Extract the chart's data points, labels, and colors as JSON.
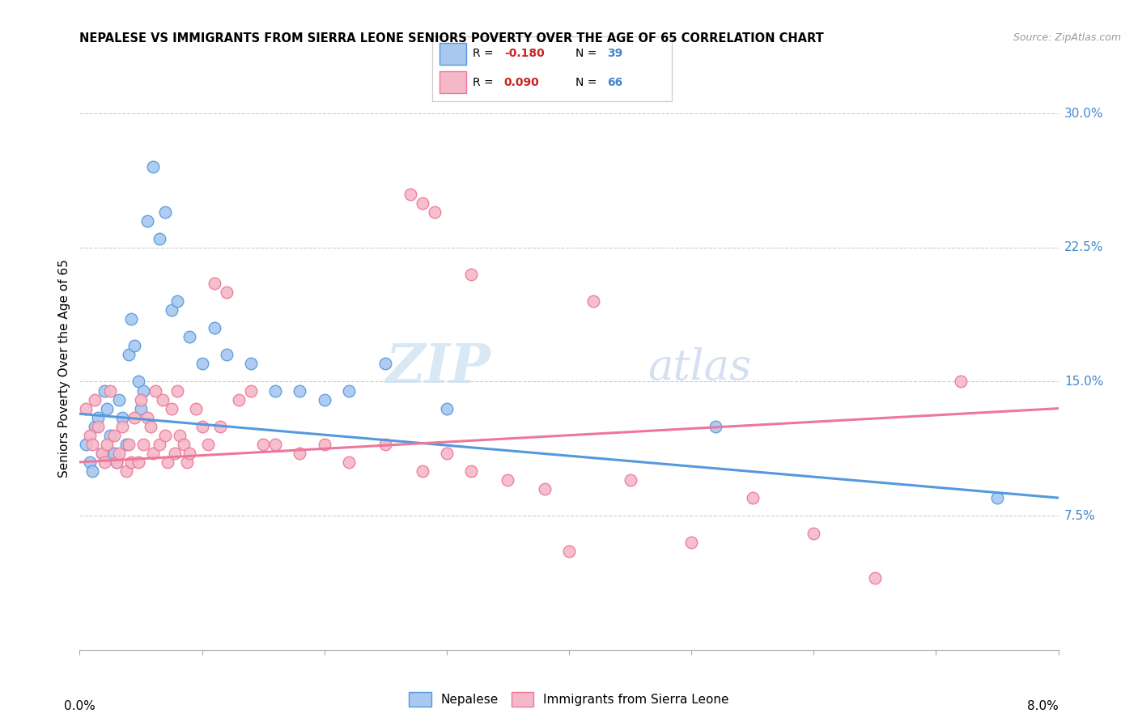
{
  "title": "NEPALESE VS IMMIGRANTS FROM SIERRA LEONE SENIORS POVERTY OVER THE AGE OF 65 CORRELATION CHART",
  "source": "Source: ZipAtlas.com",
  "ylabel": "Seniors Poverty Over the Age of 65",
  "y_ticks_right": [
    7.5,
    15.0,
    22.5,
    30.0
  ],
  "y_ticks_right_labels": [
    "7.5%",
    "15.0%",
    "22.5%",
    "30.0%"
  ],
  "x_range": [
    0.0,
    8.0
  ],
  "y_range": [
    0.0,
    31.5
  ],
  "blue_color": "#a8c8f0",
  "pink_color": "#f5b8c8",
  "blue_line_color": "#5599dd",
  "pink_line_color": "#ee7799",
  "r_color": "#cc2222",
  "n_color": "#4488cc",
  "watermark_zip": "ZIP",
  "watermark_atlas": "atlas",
  "blue_scatter_x": [
    0.05,
    0.08,
    0.1,
    0.12,
    0.15,
    0.18,
    0.2,
    0.22,
    0.25,
    0.28,
    0.3,
    0.32,
    0.35,
    0.38,
    0.4,
    0.42,
    0.45,
    0.48,
    0.5,
    0.52,
    0.55,
    0.6,
    0.65,
    0.7,
    0.75,
    0.8,
    0.9,
    1.0,
    1.1,
    1.2,
    1.4,
    1.6,
    1.8,
    2.0,
    2.2,
    2.5,
    3.0,
    5.2,
    7.5
  ],
  "blue_scatter_y": [
    11.5,
    10.5,
    10.0,
    12.5,
    13.0,
    11.0,
    14.5,
    13.5,
    12.0,
    11.0,
    10.5,
    14.0,
    13.0,
    11.5,
    16.5,
    18.5,
    17.0,
    15.0,
    13.5,
    14.5,
    24.0,
    27.0,
    23.0,
    24.5,
    19.0,
    19.5,
    17.5,
    16.0,
    18.0,
    16.5,
    16.0,
    14.5,
    14.5,
    14.0,
    14.5,
    16.0,
    13.5,
    12.5,
    8.5
  ],
  "pink_scatter_x": [
    0.05,
    0.08,
    0.1,
    0.12,
    0.15,
    0.18,
    0.2,
    0.22,
    0.25,
    0.28,
    0.3,
    0.32,
    0.35,
    0.38,
    0.4,
    0.42,
    0.45,
    0.48,
    0.5,
    0.52,
    0.55,
    0.58,
    0.6,
    0.62,
    0.65,
    0.68,
    0.7,
    0.72,
    0.75,
    0.78,
    0.8,
    0.82,
    0.85,
    0.88,
    0.9,
    0.95,
    1.0,
    1.05,
    1.1,
    1.15,
    1.2,
    1.3,
    1.4,
    1.5,
    1.6,
    1.8,
    2.0,
    2.2,
    2.5,
    2.8,
    3.0,
    3.2,
    3.5,
    3.8,
    4.0,
    4.5,
    5.0,
    5.5,
    6.0,
    6.5,
    2.7,
    2.8,
    2.9,
    3.2,
    4.2,
    7.2
  ],
  "pink_scatter_y": [
    13.5,
    12.0,
    11.5,
    14.0,
    12.5,
    11.0,
    10.5,
    11.5,
    14.5,
    12.0,
    10.5,
    11.0,
    12.5,
    10.0,
    11.5,
    10.5,
    13.0,
    10.5,
    14.0,
    11.5,
    13.0,
    12.5,
    11.0,
    14.5,
    11.5,
    14.0,
    12.0,
    10.5,
    13.5,
    11.0,
    14.5,
    12.0,
    11.5,
    10.5,
    11.0,
    13.5,
    12.5,
    11.5,
    20.5,
    12.5,
    20.0,
    14.0,
    14.5,
    11.5,
    11.5,
    11.0,
    11.5,
    10.5,
    11.5,
    10.0,
    11.0,
    10.0,
    9.5,
    9.0,
    5.5,
    9.5,
    6.0,
    8.5,
    6.5,
    4.0,
    25.5,
    25.0,
    24.5,
    21.0,
    19.5,
    15.0
  ],
  "blue_trendline_x0": 0.0,
  "blue_trendline_y0": 13.2,
  "blue_trendline_x1": 8.0,
  "blue_trendline_y1": 8.5,
  "pink_trendline_x0": 0.0,
  "pink_trendline_y0": 10.5,
  "pink_trendline_x1": 8.0,
  "pink_trendline_y1": 13.5
}
